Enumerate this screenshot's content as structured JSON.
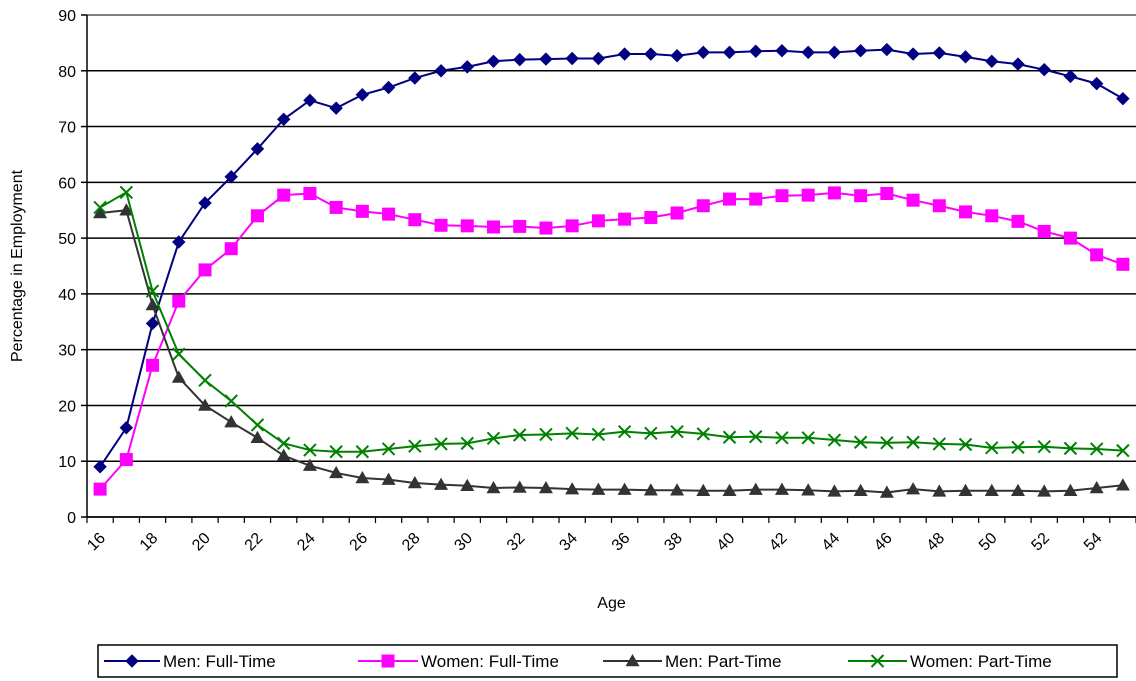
{
  "chart_data": {
    "type": "line",
    "title": "",
    "xlabel": "Age",
    "ylabel": "Percentage in Employment",
    "ylim": [
      0,
      90
    ],
    "yticks": [
      "0",
      "10",
      "20",
      "30",
      "40",
      "50",
      "60",
      "70",
      "80",
      "90"
    ],
    "xticks": [
      "16",
      "18",
      "20",
      "22",
      "24",
      "26",
      "28",
      "30",
      "32",
      "34",
      "36",
      "38",
      "40",
      "42",
      "44",
      "46",
      "48",
      "50",
      "52",
      "54"
    ],
    "x": [
      16,
      17,
      18,
      19,
      20,
      21,
      22,
      23,
      24,
      25,
      26,
      27,
      28,
      29,
      30,
      31,
      32,
      33,
      34,
      35,
      36,
      37,
      38,
      39,
      40,
      41,
      42,
      43,
      44,
      45,
      46,
      47,
      48,
      49,
      50,
      51,
      52,
      53,
      54,
      55
    ],
    "grid": "horizontal",
    "legend_position": "bottom",
    "series": [
      {
        "name": "Men: Full-Time",
        "color": "#000080",
        "marker": "diamond",
        "values": [
          9,
          16,
          34.7,
          49.3,
          56.3,
          61,
          66,
          71.3,
          74.7,
          73.3,
          75.7,
          77,
          78.7,
          80,
          80.7,
          81.7,
          82,
          82.1,
          82.2,
          82.2,
          83,
          83,
          82.7,
          83.3,
          83.3,
          83.5,
          83.6,
          83.3,
          83.3,
          83.6,
          83.8,
          83,
          83.2,
          82.5,
          81.7,
          81.2,
          80.2,
          79,
          77.7,
          75
        ]
      },
      {
        "name": "Women: Full-Time",
        "color": "#FF00FF",
        "marker": "square",
        "values": [
          5,
          10.3,
          27.2,
          38.7,
          44.3,
          48.1,
          54,
          57.7,
          58,
          55.5,
          54.8,
          54.3,
          53.3,
          52.3,
          52.2,
          52,
          52.1,
          51.8,
          52.2,
          53.1,
          53.4,
          53.7,
          54.5,
          55.8,
          57,
          57,
          57.6,
          57.7,
          58.1,
          57.6,
          58,
          56.8,
          55.8,
          54.7,
          54,
          53,
          51.2,
          50,
          47,
          45.3
        ]
      },
      {
        "name": "Men: Part-Time",
        "color": "#333333",
        "marker": "triangle",
        "values": [
          54.5,
          55,
          38,
          25,
          20,
          17,
          14.2,
          11,
          9.2,
          7.9,
          7,
          6.7,
          6.1,
          5.8,
          5.6,
          5.2,
          5.3,
          5.2,
          5,
          4.9,
          4.9,
          4.8,
          4.8,
          4.7,
          4.7,
          4.9,
          4.9,
          4.8,
          4.6,
          4.7,
          4.4,
          5,
          4.6,
          4.7,
          4.7,
          4.7,
          4.6,
          4.7,
          5.2,
          5.7
        ]
      },
      {
        "name": "Women: Part-Time",
        "color": "#008000",
        "marker": "x",
        "values": [
          55.5,
          58.2,
          40.5,
          29.2,
          24.5,
          20.8,
          16.5,
          13.2,
          12,
          11.7,
          11.7,
          12.2,
          12.7,
          13.1,
          13.2,
          14.1,
          14.7,
          14.8,
          15,
          14.8,
          15.3,
          15,
          15.3,
          14.9,
          14.3,
          14.4,
          14.2,
          14.2,
          13.8,
          13.4,
          13.3,
          13.4,
          13.1,
          13,
          12.4,
          12.5,
          12.6,
          12.3,
          12.2,
          11.9
        ]
      }
    ]
  }
}
